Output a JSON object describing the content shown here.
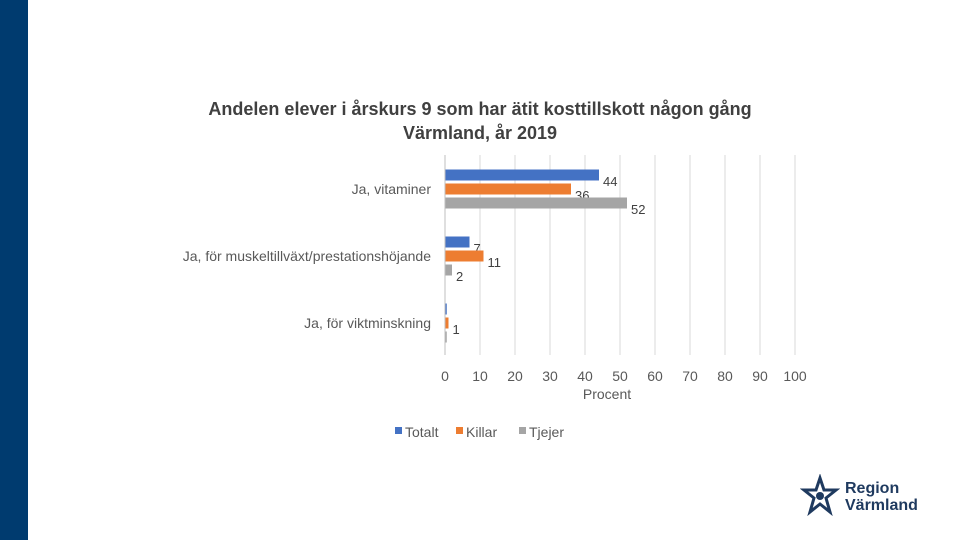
{
  "brand": {
    "name_line1": "Region",
    "name_line2": "Värmland",
    "band_color": "#003b6f"
  },
  "chart_data": {
    "type": "bar",
    "orientation": "horizontal",
    "title": "Andelen elever i årskurs 9 som har ätit kosttillskott någon gång Värmland, år 2019",
    "categories": [
      "Ja, vitaminer",
      "Ja, för muskeltillväxt/prestationshöjande",
      "Ja, för viktminskning"
    ],
    "series": [
      {
        "name": "Totalt",
        "color": "#4472c4",
        "values": [
          44,
          7,
          0.5
        ],
        "labels": [
          "44",
          "7",
          ""
        ]
      },
      {
        "name": "Killar",
        "color": "#ed7d31",
        "values": [
          36,
          11,
          1
        ],
        "labels": [
          "36",
          "11",
          "1"
        ]
      },
      {
        "name": "Tjejer",
        "color": "#a5a5a5",
        "values": [
          52,
          2,
          0.5
        ],
        "labels": [
          "52",
          "2",
          ""
        ]
      }
    ],
    "xlabel": "Procent",
    "ylabel": "",
    "xlim": [
      0,
      100
    ],
    "xticks": [
      0,
      10,
      20,
      30,
      40,
      50,
      60,
      70,
      80,
      90,
      100
    ],
    "grid": true,
    "legend_position": "bottom"
  }
}
